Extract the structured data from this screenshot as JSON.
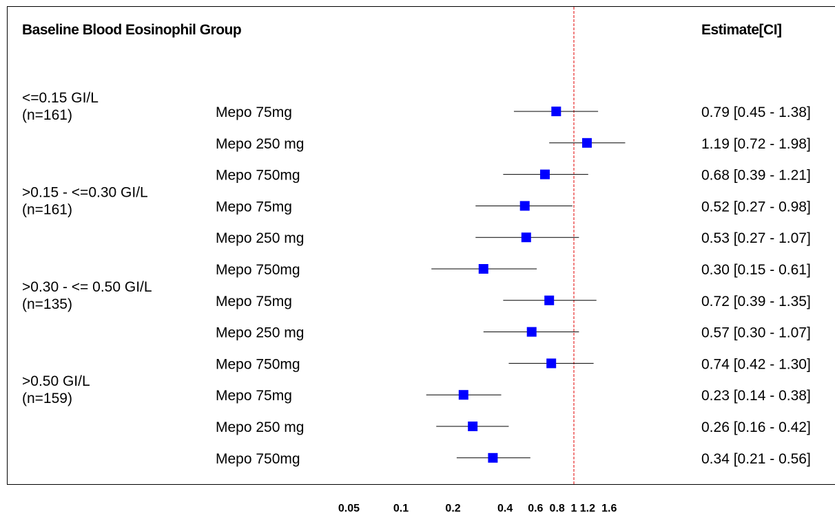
{
  "chart_data": {
    "type": "forest",
    "title": "",
    "header_left": "Baseline Blood Eosinophil Group",
    "header_right": "Estimate[CI]",
    "xscale": "log",
    "xlim": [
      0.05,
      1.6
    ],
    "xticks": [
      0.05,
      0.1,
      0.2,
      0.4,
      0.6,
      0.8,
      1,
      1.2,
      1.6
    ],
    "xtick_labels": [
      "0.05",
      "0.1",
      "0.2",
      "0.4",
      "0.6",
      "0.8",
      "1",
      "1.2",
      "1.6"
    ],
    "reference_line": 1,
    "reference_color": "#e00000",
    "marker_color": "#0000ff",
    "groups": [
      {
        "label": "<=0.15 GI/L",
        "n": "(n=161)"
      },
      {
        "label": ">0.15 - <=0.30 GI/L",
        "n": "(n=161)"
      },
      {
        "label": ">0.30 - <= 0.50 GI/L",
        "n": "(n=135)"
      },
      {
        "label": ">0.50 GI/L",
        "n": "(n=159)"
      }
    ],
    "rows": [
      {
        "label": "Mepo 75mg",
        "est": 0.79,
        "lo": 0.45,
        "hi": 1.38,
        "text": "0.79 [0.45 - 1.38]"
      },
      {
        "label": "Mepo 250 mg",
        "est": 1.19,
        "lo": 0.72,
        "hi": 1.98,
        "text": "1.19 [0.72 - 1.98]"
      },
      {
        "label": "Mepo 750mg",
        "est": 0.68,
        "lo": 0.39,
        "hi": 1.21,
        "text": "0.68 [0.39 - 1.21]"
      },
      {
        "label": "Mepo 75mg",
        "est": 0.52,
        "lo": 0.27,
        "hi": 0.98,
        "text": "0.52 [0.27 - 0.98]"
      },
      {
        "label": "Mepo 250 mg",
        "est": 0.53,
        "lo": 0.27,
        "hi": 1.07,
        "text": "0.53 [0.27 - 1.07]"
      },
      {
        "label": "Mepo 750mg",
        "est": 0.3,
        "lo": 0.15,
        "hi": 0.61,
        "text": "0.30 [0.15 - 0.61]"
      },
      {
        "label": "Mepo 75mg",
        "est": 0.72,
        "lo": 0.39,
        "hi": 1.35,
        "text": "0.72 [0.39 - 1.35]"
      },
      {
        "label": "Mepo 250 mg",
        "est": 0.57,
        "lo": 0.3,
        "hi": 1.07,
        "text": "0.57 [0.30 - 1.07]"
      },
      {
        "label": "Mepo 750mg",
        "est": 0.74,
        "lo": 0.42,
        "hi": 1.3,
        "text": "0.74 [0.42 - 1.30]"
      },
      {
        "label": "Mepo 75mg",
        "est": 0.23,
        "lo": 0.14,
        "hi": 0.38,
        "text": "0.23 [0.14 - 0.38]"
      },
      {
        "label": "Mepo 250 mg",
        "est": 0.26,
        "lo": 0.16,
        "hi": 0.42,
        "text": "0.26 [0.16 - 0.42]"
      },
      {
        "label": "Mepo 750mg",
        "est": 0.34,
        "lo": 0.21,
        "hi": 0.56,
        "text": "0.34 [0.21 - 0.56]"
      }
    ]
  }
}
